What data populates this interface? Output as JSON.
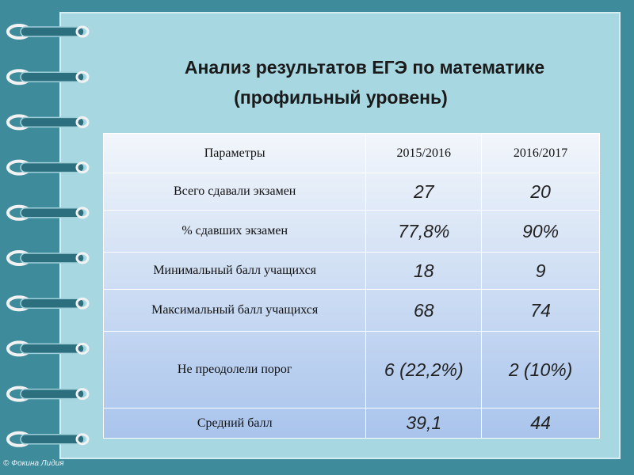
{
  "header": {
    "title_line1": "Анализ результатов ЕГЭ по математике",
    "title_line2": "(профильный уровень)"
  },
  "table": {
    "columns": [
      "Параметры",
      "2015/2016",
      "2016/2017"
    ],
    "rows": [
      [
        "Всего сдавали экзамен",
        "27",
        "20"
      ],
      [
        "% сдавших экзамен",
        "77,8%",
        "90%"
      ],
      [
        "Минимальный балл учащихся",
        "18",
        "9"
      ],
      [
        "Максимальный балл учащихся",
        "68",
        "74"
      ],
      [
        "Не преодолели порог",
        "6  (22,2%)",
        "2 (10%)"
      ],
      [
        "Средний балл",
        "39,1",
        "44"
      ]
    ]
  },
  "watermark": "© Фокина Лидия"
}
